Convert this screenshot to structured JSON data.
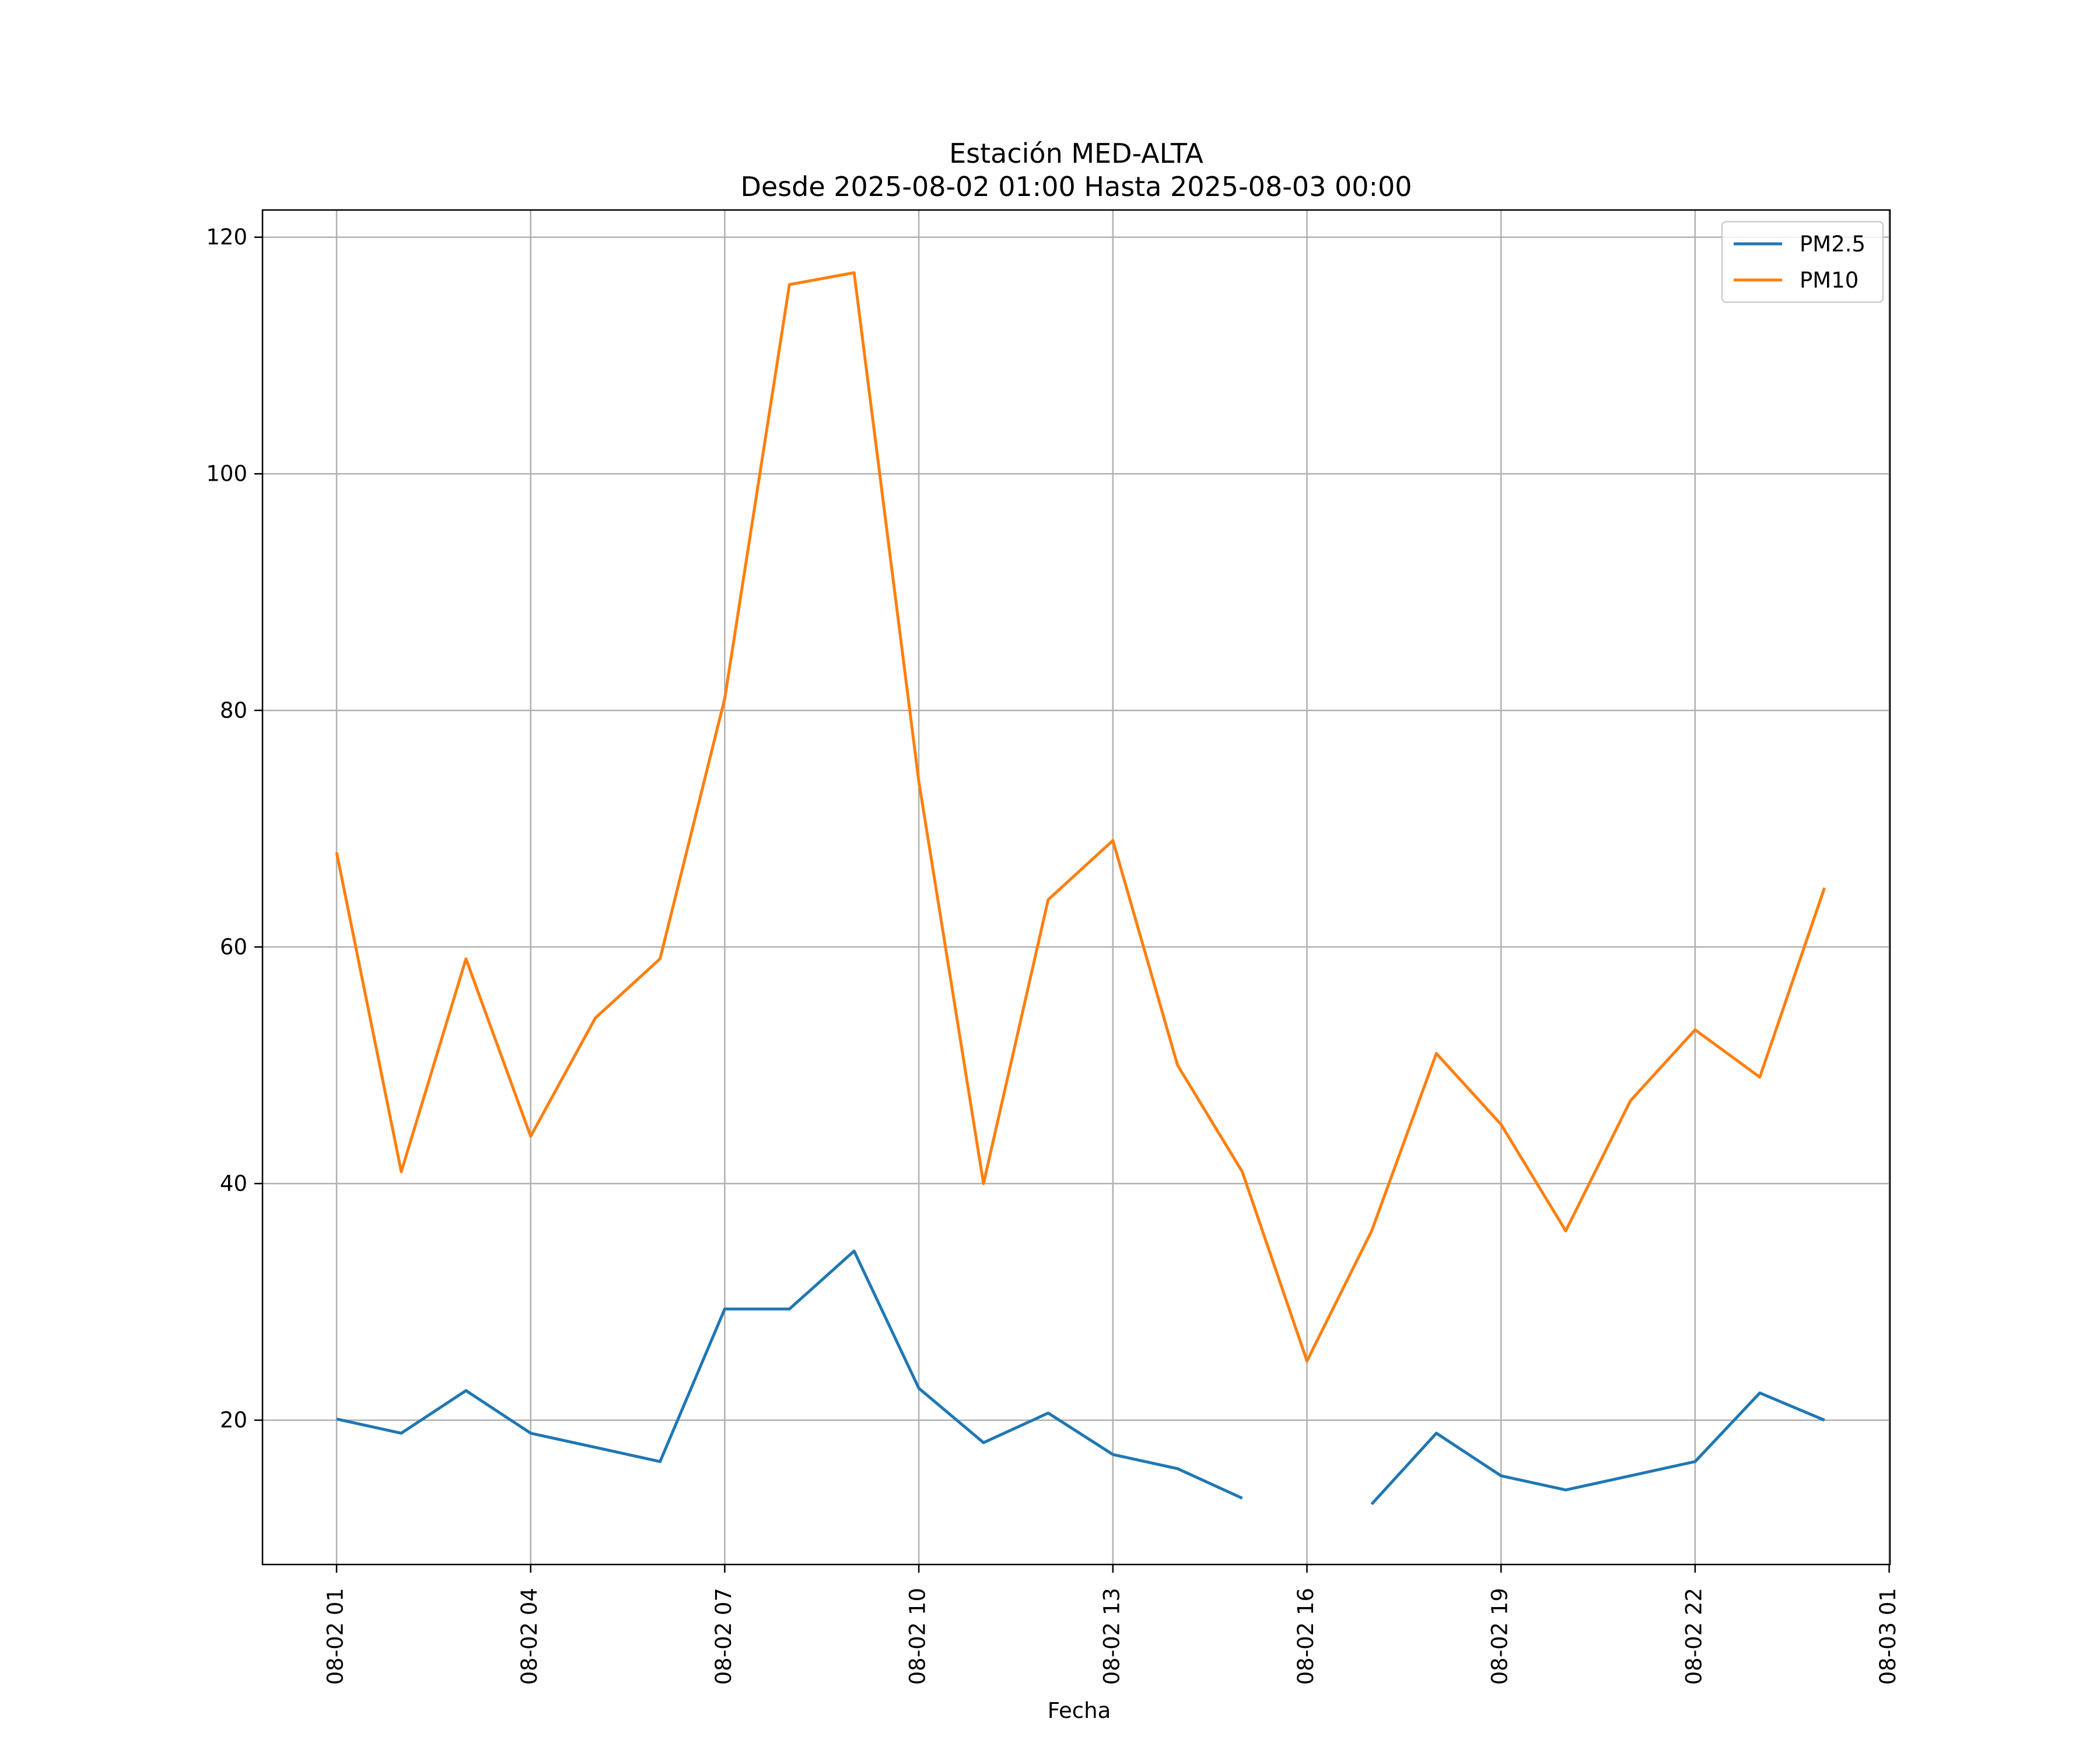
{
  "chart_data": {
    "type": "line",
    "title": "Estación MED-ALTA",
    "subtitle": "Desde 2025-08-02 01:00 Hasta 2025-08-03 00:00",
    "xlabel": "Fecha",
    "ylabel": "",
    "x": [
      "2025-08-02 01:00",
      "2025-08-02 02:00",
      "2025-08-02 03:00",
      "2025-08-02 04:00",
      "2025-08-02 05:00",
      "2025-08-02 06:00",
      "2025-08-02 07:00",
      "2025-08-02 08:00",
      "2025-08-02 09:00",
      "2025-08-02 10:00",
      "2025-08-02 11:00",
      "2025-08-02 12:00",
      "2025-08-02 13:00",
      "2025-08-02 14:00",
      "2025-08-02 15:00",
      "2025-08-02 16:00",
      "2025-08-02 17:00",
      "2025-08-02 18:00",
      "2025-08-02 19:00",
      "2025-08-02 20:00",
      "2025-08-02 21:00",
      "2025-08-02 22:00",
      "2025-08-02 23:00",
      "2025-08-03 00:00"
    ],
    "series": [
      {
        "name": "PM2.5",
        "color": "#1f77b4",
        "values": [
          20.1,
          18.9,
          22.5,
          18.9,
          17.7,
          16.5,
          29.4,
          29.4,
          34.3,
          22.7,
          18.1,
          20.6,
          17.1,
          15.9,
          13.4,
          null,
          12.9,
          18.9,
          15.3,
          14.1,
          15.3,
          16.5,
          22.3,
          20.0
        ]
      },
      {
        "name": "PM10",
        "color": "#ff7f0e",
        "values": [
          68,
          41,
          59,
          44,
          54,
          59,
          81,
          116,
          117,
          74,
          40,
          64,
          69,
          50,
          41,
          25,
          36,
          51,
          45,
          36,
          47,
          53,
          49,
          65
        ]
      }
    ],
    "x_ticks": [
      "08-02 01",
      "08-02 04",
      "08-02 07",
      "08-02 10",
      "08-02 13",
      "08-02 16",
      "08-02 19",
      "08-02 22",
      "08-03 01"
    ],
    "y_ticks": [
      "20",
      "40",
      "60",
      "80",
      "100",
      "120"
    ],
    "ylim": [
      7.8,
      122.3
    ],
    "grid": true,
    "legend_position": "upper-right"
  }
}
